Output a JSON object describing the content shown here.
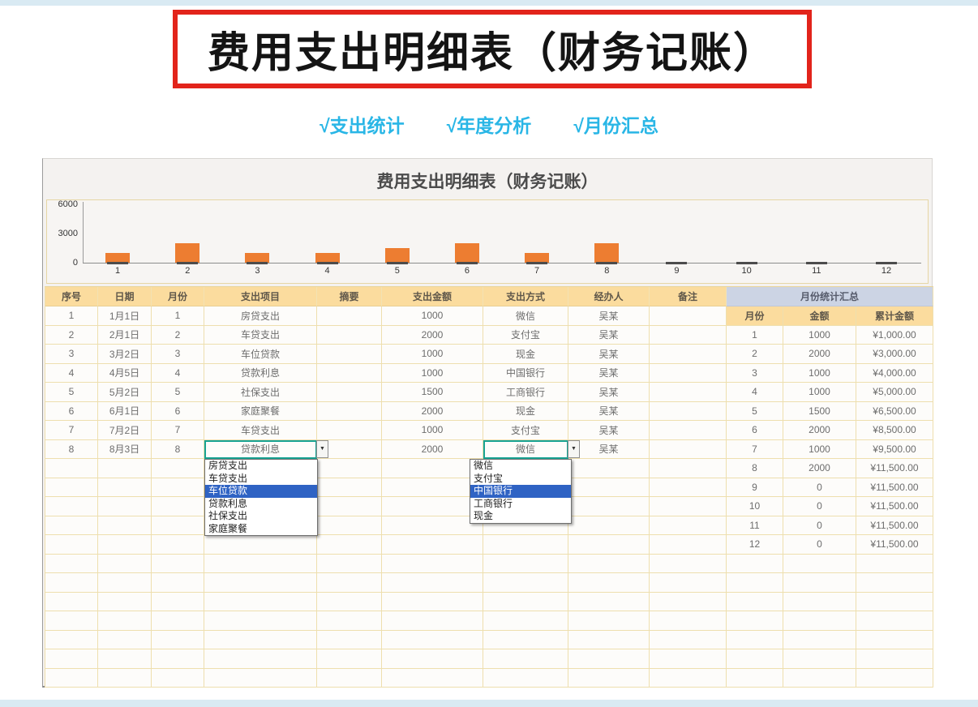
{
  "header": {
    "title": "费用支出明细表（财务记账）",
    "features": [
      "√支出统计",
      "√年度分析",
      "√月份汇总"
    ],
    "title_border_color": "#e2241b",
    "feature_color": "#29b6e6"
  },
  "sheet": {
    "title": "费用支出明细表（财务记账）",
    "columns": [
      "序号",
      "日期",
      "月份",
      "支出项目",
      "摘要",
      "支出金额",
      "支出方式",
      "经办人",
      "备注"
    ],
    "rows": [
      {
        "no": "1",
        "date": "1月1日",
        "month": "1",
        "item": "房贷支出",
        "abstract": "",
        "amount": "1000",
        "method": "微信",
        "handler": "吴某",
        "note": ""
      },
      {
        "no": "2",
        "date": "2月1日",
        "month": "2",
        "item": "车贷支出",
        "abstract": "",
        "amount": "2000",
        "method": "支付宝",
        "handler": "吴某",
        "note": ""
      },
      {
        "no": "3",
        "date": "3月2日",
        "month": "3",
        "item": "车位贷款",
        "abstract": "",
        "amount": "1000",
        "method": "现金",
        "handler": "吴某",
        "note": ""
      },
      {
        "no": "4",
        "date": "4月5日",
        "month": "4",
        "item": "贷款利息",
        "abstract": "",
        "amount": "1000",
        "method": "中国银行",
        "handler": "吴某",
        "note": ""
      },
      {
        "no": "5",
        "date": "5月2日",
        "month": "5",
        "item": "社保支出",
        "abstract": "",
        "amount": "1500",
        "method": "工商银行",
        "handler": "吴某",
        "note": ""
      },
      {
        "no": "6",
        "date": "6月1日",
        "month": "6",
        "item": "家庭聚餐",
        "abstract": "",
        "amount": "2000",
        "method": "现金",
        "handler": "吴某",
        "note": ""
      },
      {
        "no": "7",
        "date": "7月2日",
        "month": "7",
        "item": "车贷支出",
        "abstract": "",
        "amount": "1000",
        "method": "支付宝",
        "handler": "吴某",
        "note": ""
      },
      {
        "no": "8",
        "date": "8月3日",
        "month": "8",
        "item": "贷款利息",
        "abstract": "",
        "amount": "2000",
        "method": "微信",
        "handler": "吴某",
        "note": ""
      }
    ],
    "empty_rows_after": 12,
    "summary": {
      "title": "月份统计汇总",
      "columns": [
        "月份",
        "金额",
        "累计金额"
      ],
      "rows": [
        [
          "1",
          "1000",
          "¥1,000.00"
        ],
        [
          "2",
          "2000",
          "¥3,000.00"
        ],
        [
          "3",
          "1000",
          "¥4,000.00"
        ],
        [
          "4",
          "1000",
          "¥5,000.00"
        ],
        [
          "5",
          "1500",
          "¥6,500.00"
        ],
        [
          "6",
          "2000",
          "¥8,500.00"
        ],
        [
          "7",
          "1000",
          "¥9,500.00"
        ],
        [
          "8",
          "2000",
          "¥11,500.00"
        ],
        [
          "9",
          "0",
          "¥11,500.00"
        ],
        [
          "10",
          "0",
          "¥11,500.00"
        ],
        [
          "11",
          "0",
          "¥11,500.00"
        ],
        [
          "12",
          "0",
          "¥11,500.00"
        ]
      ]
    },
    "header_bg": "#fbdc9e",
    "summary_header_bg": "#ccd4e4",
    "selection_color": "#18a393"
  },
  "chart_data": {
    "type": "bar",
    "title": "费用支出明细表（财务记账）",
    "categories": [
      "1",
      "2",
      "3",
      "4",
      "5",
      "6",
      "7",
      "8",
      "9",
      "10",
      "11",
      "12"
    ],
    "values": [
      1000,
      2000,
      1000,
      1000,
      1500,
      2000,
      1000,
      2000,
      0,
      0,
      0,
      0
    ],
    "xlabel": "",
    "ylabel": "",
    "ylim": [
      0,
      6000
    ],
    "yticks": [
      6000,
      3000,
      0
    ],
    "bar_color": "#ed7d31",
    "legend": "none",
    "grid": false
  },
  "dropdowns": [
    {
      "for": "item",
      "options": [
        "房贷支出",
        "车贷支出",
        "车位贷款",
        "贷款利息",
        "社保支出",
        "家庭聚餐"
      ],
      "highlighted": "车位贷款",
      "arrow": "▼"
    },
    {
      "for": "method",
      "options": [
        "微信",
        "支付宝",
        "中国银行",
        "工商银行",
        "现金"
      ],
      "highlighted": "中国银行",
      "arrow": "▼"
    }
  ]
}
